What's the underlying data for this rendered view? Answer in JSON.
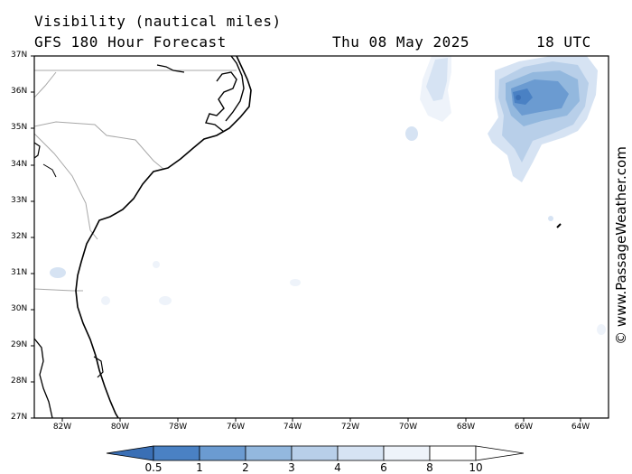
{
  "header": {
    "title": "Visibility (nautical miles)",
    "subtitle": "GFS 180 Hour Forecast",
    "date": "Thu 08 May 2025",
    "time": "18 UTC"
  },
  "map": {
    "latitude_labels": [
      "37N",
      "36N",
      "35N",
      "34N",
      "33N",
      "32N",
      "31N",
      "30N",
      "29N",
      "28N",
      "27N"
    ],
    "longitude_labels": [
      "82W",
      "80W",
      "78W",
      "76W",
      "74W",
      "72W",
      "70W",
      "68W",
      "66W",
      "64W"
    ],
    "region": "US Southeast coast and western Atlantic"
  },
  "colorbar": {
    "labels": [
      "0.5",
      "1",
      "2",
      "3",
      "4",
      "6",
      "8",
      "10"
    ],
    "colors": [
      "#3a6fb5",
      "#4a81c4",
      "#6b9bd1",
      "#93b8de",
      "#b8cfe9",
      "#d6e3f3",
      "#eef3fa",
      "#ffffff"
    ]
  },
  "watermark": "© www.PassageWeather.com"
}
